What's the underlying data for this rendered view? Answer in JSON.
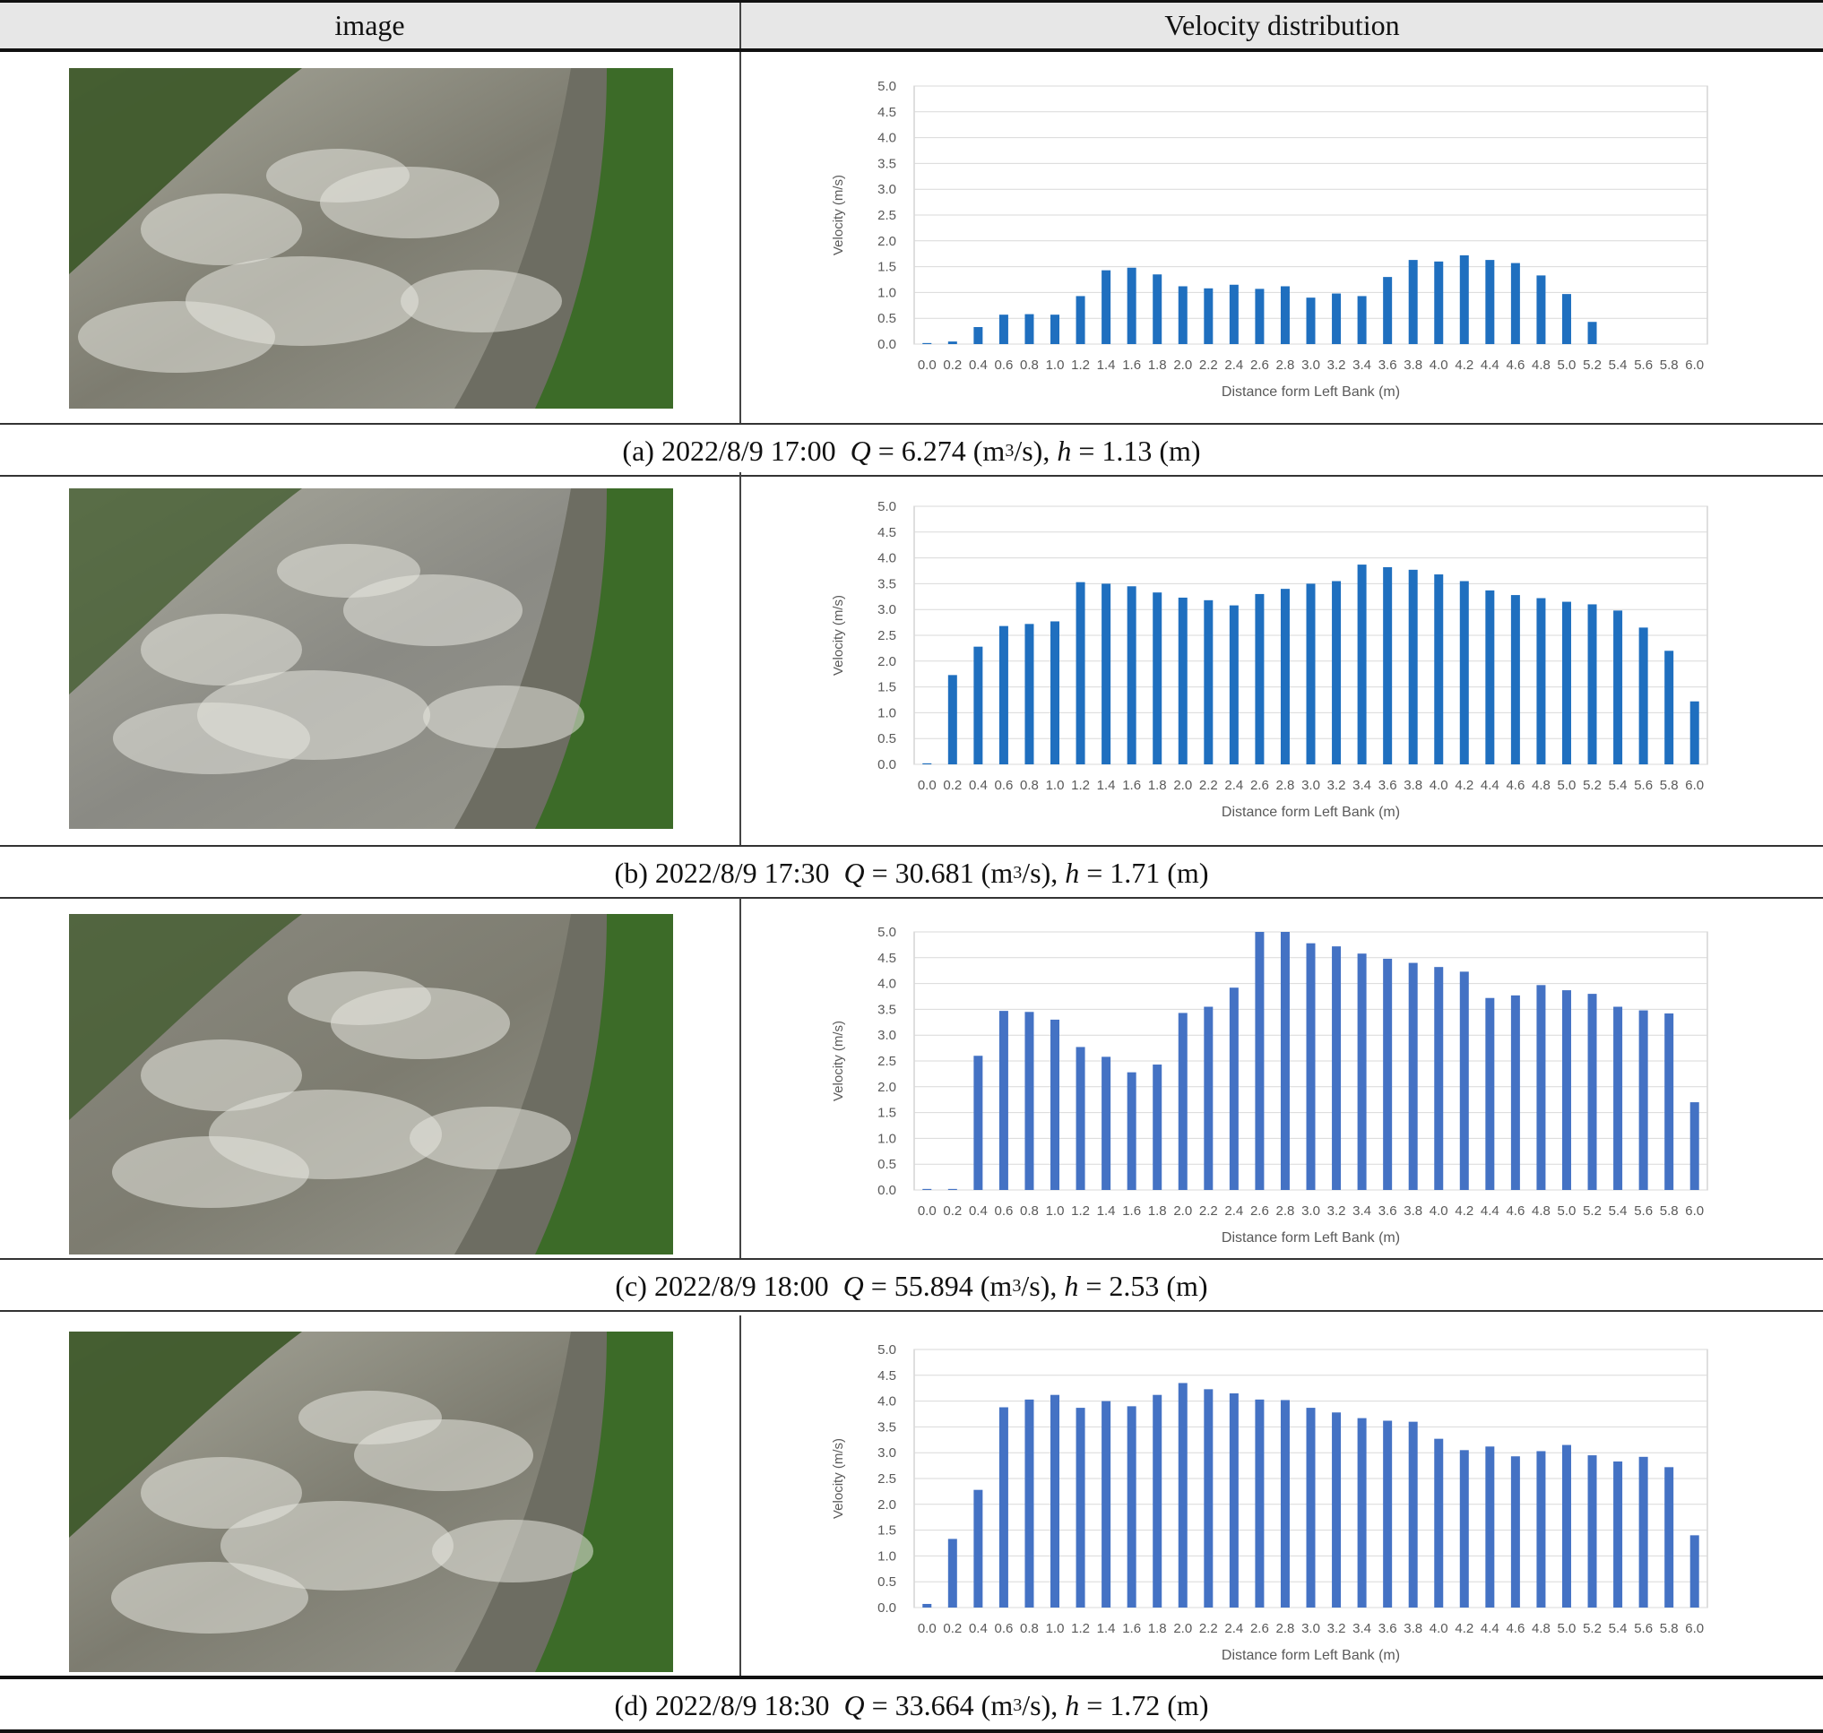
{
  "header": {
    "left": "image",
    "right": "Velocity distribution"
  },
  "colors": {
    "bar_a_b": "#1f6fbf",
    "bar_c_d": "#4472c4",
    "grid": "#d9d9d9",
    "axis_text": "#595959"
  },
  "panels": [
    {
      "caption": {
        "label": "(a) 2022/8/9 17:00",
        "q_sym": "Q",
        "eq1": " = 6.274 (m",
        "sup": "3",
        "q_tail": "/s), ",
        "h_sym": "h",
        "eq2": " = 1.13 (m)"
      },
      "photo": {
        "scene": "river flood photo"
      }
    },
    {
      "caption": {
        "label": "(b) 2022/8/9 17:30",
        "q_sym": "Q",
        "eq1": " = 30.681 (m",
        "sup": "3",
        "q_tail": "/s), ",
        "h_sym": "h",
        "eq2": " = 1.71 (m)"
      },
      "photo": {
        "scene": "river flood photo"
      }
    },
    {
      "caption": {
        "label": "(c) 2022/8/9 18:00",
        "q_sym": "Q",
        "eq1": " = 55.894 (m",
        "sup": "3",
        "q_tail": "/s), ",
        "h_sym": "h",
        "eq2": " = 2.53 (m)"
      },
      "photo": {
        "scene": "river flood photo"
      }
    },
    {
      "caption": {
        "label": "(d) 2022/8/9 18:30",
        "q_sym": "Q",
        "eq1": " = 33.664 (m",
        "sup": "3",
        "q_tail": "/s), ",
        "h_sym": "h",
        "eq2": " = 1.72 (m)"
      },
      "photo": {
        "scene": "river flood photo"
      }
    }
  ],
  "chart_data": [
    {
      "type": "bar",
      "xlabel": "Distance form Left Bank (m)",
      "ylabel": "Velocity (m/s)",
      "ylim": [
        0,
        5
      ],
      "yticks": [
        "0.0",
        "0.5",
        "1.0",
        "1.5",
        "2.0",
        "2.5",
        "3.0",
        "3.5",
        "4.0",
        "4.5",
        "5.0"
      ],
      "categories": [
        "0.0",
        "0.2",
        "0.4",
        "0.6",
        "0.8",
        "1.0",
        "1.2",
        "1.4",
        "1.6",
        "1.8",
        "2.0",
        "2.2",
        "2.4",
        "2.6",
        "2.8",
        "3.0",
        "3.2",
        "3.4",
        "3.6",
        "3.8",
        "4.0",
        "4.2",
        "4.4",
        "4.6",
        "4.8",
        "5.0",
        "5.2",
        "5.4",
        "5.6",
        "5.8",
        "6.0"
      ],
      "values": [
        0.02,
        0.05,
        0.33,
        0.57,
        0.58,
        0.57,
        0.93,
        1.43,
        1.48,
        1.35,
        1.12,
        1.08,
        1.15,
        1.07,
        1.12,
        0.9,
        0.98,
        0.93,
        1.3,
        1.63,
        1.6,
        1.72,
        1.63,
        1.57,
        1.33,
        0.97,
        0.43,
        0,
        0,
        0,
        0
      ],
      "grid": true
    },
    {
      "type": "bar",
      "xlabel": "Distance form Left Bank (m)",
      "ylabel": "Velocity (m/s)",
      "ylim": [
        0,
        5
      ],
      "yticks": [
        "0.0",
        "0.5",
        "1.0",
        "1.5",
        "2.0",
        "2.5",
        "3.0",
        "3.5",
        "4.0",
        "4.5",
        "5.0"
      ],
      "categories": [
        "0.0",
        "0.2",
        "0.4",
        "0.6",
        "0.8",
        "1.0",
        "1.2",
        "1.4",
        "1.6",
        "1.8",
        "2.0",
        "2.2",
        "2.4",
        "2.6",
        "2.8",
        "3.0",
        "3.2",
        "3.4",
        "3.6",
        "3.8",
        "4.0",
        "4.2",
        "4.4",
        "4.6",
        "4.8",
        "5.0",
        "5.2",
        "5.4",
        "5.6",
        "5.8",
        "6.0"
      ],
      "values": [
        0.02,
        1.73,
        2.28,
        2.68,
        2.72,
        2.77,
        3.53,
        3.5,
        3.45,
        3.33,
        3.23,
        3.18,
        3.08,
        3.3,
        3.4,
        3.5,
        3.55,
        3.87,
        3.82,
        3.77,
        3.68,
        3.55,
        3.37,
        3.28,
        3.22,
        3.15,
        3.1,
        2.98,
        2.65,
        2.2,
        1.22
      ],
      "grid": true
    },
    {
      "type": "bar",
      "xlabel": "Distance form Left Bank (m)",
      "ylabel": "Velocity (m/s)",
      "ylim": [
        0,
        5
      ],
      "yticks": [
        "0.0",
        "0.5",
        "1.0",
        "1.5",
        "2.0",
        "2.5",
        "3.0",
        "3.5",
        "4.0",
        "4.5",
        "5.0"
      ],
      "categories": [
        "0.0",
        "0.2",
        "0.4",
        "0.6",
        "0.8",
        "1.0",
        "1.2",
        "1.4",
        "1.6",
        "1.8",
        "2.0",
        "2.2",
        "2.4",
        "2.6",
        "2.8",
        "3.0",
        "3.2",
        "3.4",
        "3.6",
        "3.8",
        "4.0",
        "4.2",
        "4.4",
        "4.6",
        "4.8",
        "5.0",
        "5.2",
        "5.4",
        "5.6",
        "5.8",
        "6.0"
      ],
      "values": [
        0.02,
        0.02,
        2.6,
        3.47,
        3.45,
        3.3,
        2.77,
        2.58,
        2.28,
        2.43,
        3.43,
        3.55,
        3.92,
        5.0,
        5.0,
        4.78,
        4.72,
        4.58,
        4.48,
        4.4,
        4.32,
        4.23,
        3.72,
        3.77,
        3.97,
        3.87,
        3.8,
        3.55,
        3.48,
        3.42,
        1.7
      ],
      "grid": true
    },
    {
      "type": "bar",
      "xlabel": "Distance form Left Bank (m)",
      "ylabel": "Velocity (m/s)",
      "ylim": [
        0,
        5
      ],
      "yticks": [
        "0.0",
        "0.5",
        "1.0",
        "1.5",
        "2.0",
        "2.5",
        "3.0",
        "3.5",
        "4.0",
        "4.5",
        "5.0"
      ],
      "categories": [
        "0.0",
        "0.2",
        "0.4",
        "0.6",
        "0.8",
        "1.0",
        "1.2",
        "1.4",
        "1.6",
        "1.8",
        "2.0",
        "2.2",
        "2.4",
        "2.6",
        "2.8",
        "3.0",
        "3.2",
        "3.4",
        "3.6",
        "3.8",
        "4.0",
        "4.2",
        "4.4",
        "4.6",
        "4.8",
        "5.0",
        "5.2",
        "5.4",
        "5.6",
        "5.8",
        "6.0"
      ],
      "values": [
        0.07,
        1.33,
        2.28,
        3.88,
        4.03,
        4.12,
        3.87,
        4.0,
        3.9,
        4.12,
        4.35,
        4.23,
        4.15,
        4.03,
        4.02,
        3.87,
        3.78,
        3.67,
        3.62,
        3.6,
        3.27,
        3.05,
        3.12,
        2.93,
        3.03,
        3.15,
        2.95,
        2.83,
        2.92,
        2.72,
        1.4
      ],
      "grid": true
    }
  ]
}
